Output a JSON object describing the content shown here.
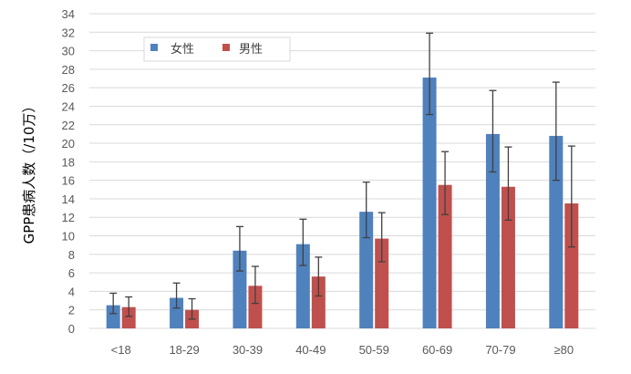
{
  "chart_data": {
    "type": "bar",
    "title": "",
    "xlabel": "",
    "ylabel": "GPP患病人数（/10万）",
    "ylim": [
      0,
      34
    ],
    "ytick_step": 2,
    "grid": true,
    "legend_position": "top-left",
    "categories": [
      "<18",
      "18-29",
      "30-39",
      "40-49",
      "50-59",
      "60-69",
      "70-79",
      "≥80"
    ],
    "series": [
      {
        "name": "女性",
        "color": "#4F81BD",
        "values": [
          2.5,
          3.3,
          8.4,
          9.1,
          12.6,
          27.1,
          21.0,
          20.8
        ],
        "error_low": [
          1.6,
          2.2,
          6.2,
          6.8,
          9.8,
          23.1,
          16.9,
          16.0
        ],
        "error_high": [
          3.8,
          4.9,
          11.0,
          11.8,
          15.8,
          31.9,
          25.7,
          26.6
        ]
      },
      {
        "name": "男性",
        "color": "#C0504D",
        "values": [
          2.3,
          2.0,
          4.6,
          5.6,
          9.7,
          15.5,
          15.3,
          13.5
        ],
        "error_low": [
          1.3,
          1.0,
          2.7,
          3.5,
          7.2,
          12.3,
          11.7,
          8.8
        ],
        "error_high": [
          3.4,
          3.2,
          6.7,
          7.7,
          12.5,
          19.1,
          19.6,
          19.7
        ]
      }
    ]
  },
  "colors": {
    "gridline": "#D9D9D9",
    "error_bar": "#404040",
    "axis_text": "#595959"
  }
}
